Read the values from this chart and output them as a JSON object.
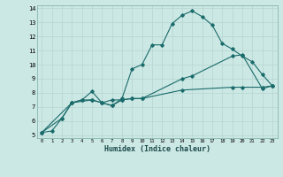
{
  "xlabel": "Humidex (Indice chaleur)",
  "ylabel": "",
  "xlim": [
    -0.5,
    23.5
  ],
  "ylim": [
    4.8,
    14.2
  ],
  "xticks": [
    0,
    1,
    2,
    3,
    4,
    5,
    6,
    7,
    8,
    9,
    10,
    11,
    12,
    13,
    14,
    15,
    16,
    17,
    18,
    19,
    20,
    21,
    22,
    23
  ],
  "yticks": [
    5,
    6,
    7,
    8,
    9,
    10,
    11,
    12,
    13,
    14
  ],
  "bg_color": "#cce8e4",
  "line_color": "#1a6b6b",
  "grid_color": "#b8d8d4",
  "series1_x": [
    0,
    1,
    2,
    3,
    4,
    5,
    6,
    7,
    8,
    9,
    10,
    11,
    12,
    13,
    14,
    15,
    16,
    17,
    18,
    19,
    20,
    21,
    22,
    23
  ],
  "series1_y": [
    5.2,
    5.3,
    6.2,
    7.3,
    7.5,
    8.1,
    7.3,
    7.1,
    7.6,
    9.7,
    10.0,
    11.4,
    11.4,
    12.9,
    13.5,
    13.8,
    13.4,
    12.8,
    11.5,
    11.1,
    10.6,
    10.2,
    9.3,
    8.5
  ],
  "series2_x": [
    0,
    2,
    3,
    4,
    5,
    6,
    7,
    8,
    9,
    10,
    14,
    19,
    20,
    22,
    23
  ],
  "series2_y": [
    5.2,
    6.2,
    7.3,
    7.5,
    7.5,
    7.3,
    7.5,
    7.5,
    7.6,
    7.6,
    8.2,
    8.4,
    8.4,
    8.4,
    8.5
  ],
  "series3_x": [
    0,
    3,
    5,
    6,
    7,
    8,
    9,
    10,
    14,
    15,
    19,
    20,
    22,
    23
  ],
  "series3_y": [
    5.2,
    7.3,
    7.5,
    7.3,
    7.1,
    7.5,
    7.6,
    7.6,
    9.0,
    9.2,
    10.6,
    10.7,
    8.3,
    8.5
  ]
}
